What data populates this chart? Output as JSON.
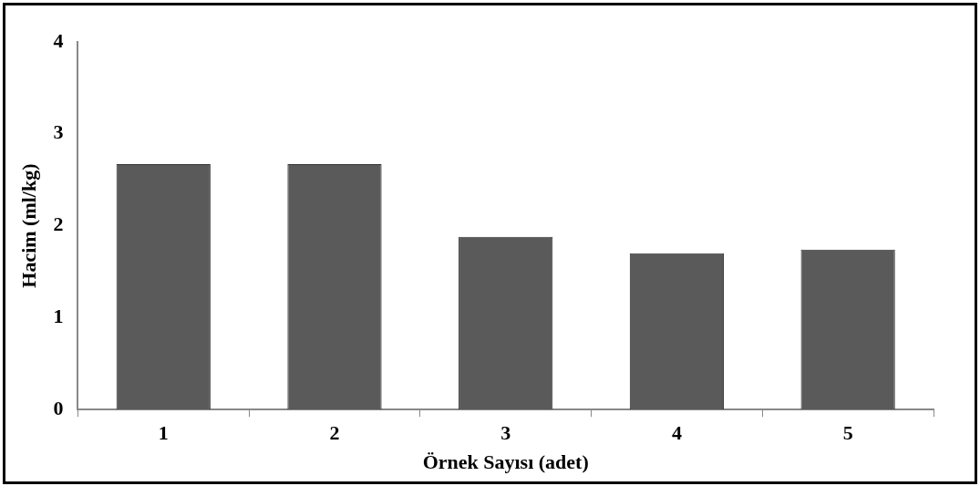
{
  "chart_data": {
    "type": "bar",
    "xlabel": "Örnek Sayısı (adet)",
    "ylabel": "Hacim (ml/kg)",
    "categories": [
      "1",
      "2",
      "3",
      "4",
      "5"
    ],
    "values": [
      2.67,
      2.67,
      1.88,
      1.7,
      1.74
    ],
    "color": "#5a5a5a",
    "ylim": [
      0,
      4
    ],
    "yticks": [
      0,
      1,
      2,
      3,
      4
    ],
    "grid": false
  }
}
